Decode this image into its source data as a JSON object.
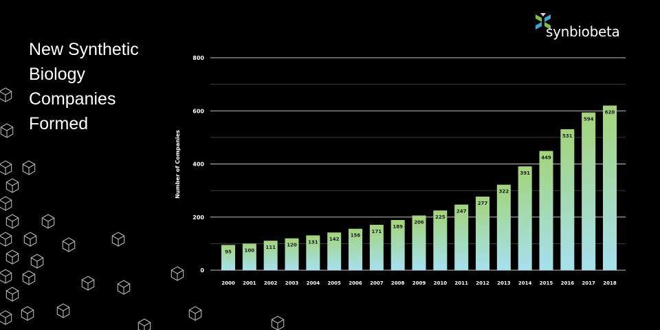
{
  "title_lines": [
    "New Synthetic",
    "Biology",
    "Companies",
    "Formed"
  ],
  "logo": {
    "text": "synbiobeta",
    "icon": "synbiobeta-logo-icon"
  },
  "colors": {
    "background": "#000000",
    "bar_top": "#a3d47a",
    "bar_bottom": "#a6e0ef",
    "grid": "#cfcfcf",
    "logo_green": "#7ac143",
    "logo_blue": "#3aa6d9"
  },
  "chart_data": {
    "type": "bar",
    "title": "New Synthetic Biology Companies Formed",
    "xlabel": "",
    "ylabel": "Number of Companies",
    "categories": [
      "2000",
      "2001",
      "2002",
      "2003",
      "2004",
      "2005",
      "2006",
      "2007",
      "2008",
      "2009",
      "2010",
      "2011",
      "2012",
      "2013",
      "2014",
      "2015",
      "2016",
      "2017",
      "2018"
    ],
    "values": [
      95,
      100,
      111,
      120,
      131,
      142,
      156,
      171,
      189,
      206,
      225,
      247,
      277,
      322,
      391,
      449,
      531,
      594,
      620
    ],
    "ylim": [
      0,
      800
    ],
    "yticks": [
      0,
      200,
      400,
      600,
      800
    ],
    "grid": true
  }
}
